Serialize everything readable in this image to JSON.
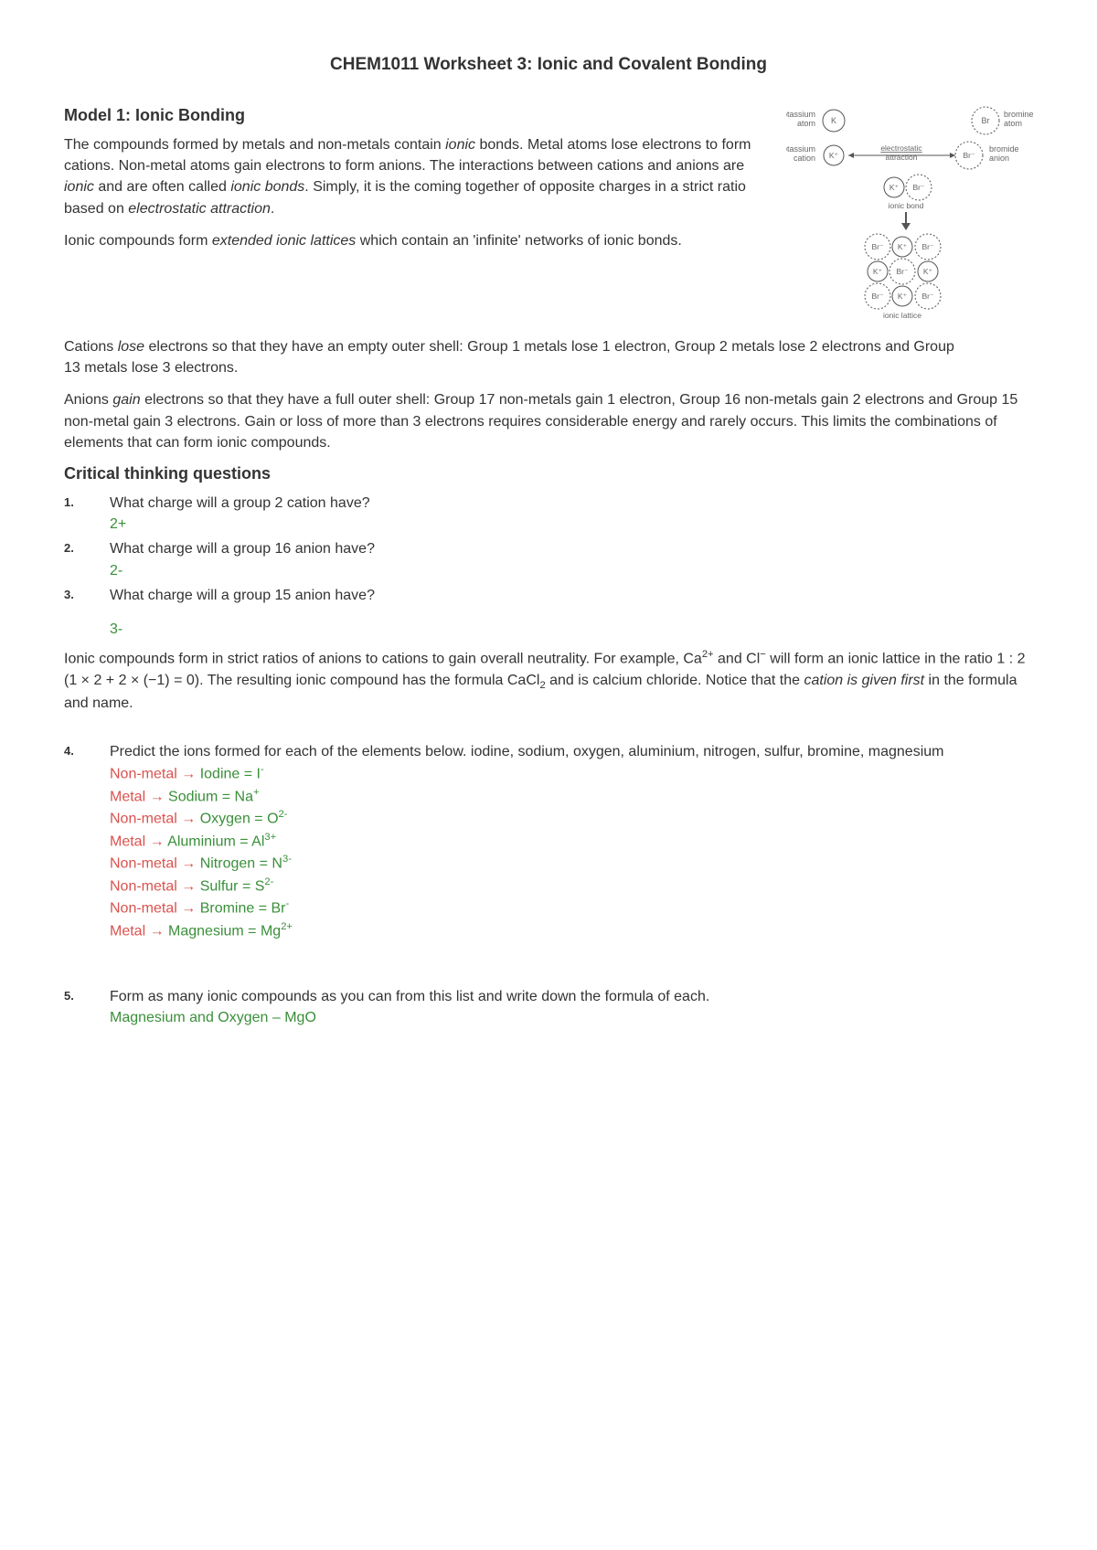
{
  "colors": {
    "text": "#333333",
    "green": "#3a8f3a",
    "red": "#d9534f",
    "diagram_stroke": "#555555",
    "diagram_text": "#666666",
    "background": "#ffffff"
  },
  "typography": {
    "body_fontsize": 16,
    "title_fontsize": 19,
    "heading_fontsize": 18,
    "qnum_fontsize": 13,
    "font_family": "Verdana"
  },
  "title": "CHEM1011 Worksheet 3: Ionic and Covalent Bonding",
  "model1": {
    "heading": "Model 1: Ionic Bonding",
    "p1_segments": [
      {
        "t": "The compounds formed by metals and non-metals contain "
      },
      {
        "t": "ionic",
        "i": true
      },
      {
        "t": " bonds. Metal atoms lose electrons to form cations. Non-metal atoms gain electrons to form anions. The interactions between cations and anions are "
      },
      {
        "t": "ionic",
        "i": true
      },
      {
        "t": " and are often called "
      },
      {
        "t": "ionic bonds",
        "i": true
      },
      {
        "t": ". Simply, it is the coming together of opposite charges in a strict ratio based on "
      },
      {
        "t": "electrostatic attraction",
        "i": true
      },
      {
        "t": "."
      }
    ],
    "p2_segments": [
      {
        "t": "Ionic compounds form "
      },
      {
        "t": "extended ionic lattices",
        "i": true
      },
      {
        "t": " which contain an 'infinite' networks of ionic bonds."
      }
    ],
    "p3_segments": [
      {
        "t": "Cations "
      },
      {
        "t": "lose",
        "i": true
      },
      {
        "t": " electrons so that they have an empty outer shell: Group 1 metals lose 1 electron, Group 2 metals lose 2 electrons and Group"
      }
    ],
    "p3b": "13 metals lose 3 electrons.",
    "p4_segments": [
      {
        "t": "Anions "
      },
      {
        "t": "gain",
        "i": true
      },
      {
        "t": " electrons so that they have a full outer shell: Group 17 non-metals gain 1 electron, Group 16 non-metals gain 2 electrons and Group 15 non-metal gain 3 electrons. Gain or loss of more than 3 electrons requires considerable energy and rarely occurs. This limits the combinations of elements that can form ionic compounds."
      }
    ]
  },
  "ctq_heading": "Critical thinking questions",
  "questions": {
    "q1": {
      "num": "1.",
      "text": "What charge will a group 2 cation have?",
      "ans": "2+"
    },
    "q2": {
      "num": "2.",
      "text": "What charge will a group 16 anion have?",
      "ans": "2-"
    },
    "q3": {
      "num": "3.",
      "text": "What charge will a group 15 anion have?",
      "ans": "3-"
    },
    "pRatio_html": "Ionic compounds form in strict ratios of anions to cations to gain overall neutrality. For example, Ca<sup>2+</sup> and Cl<sup>−</sup> will form an ionic lattice in the ratio 1 : 2 (1 × 2 + 2 × (−1) = 0). The resulting ionic compound has the formula CaCl<sub>2</sub> and is calcium chloride. Notice that the <em>cation is given first</em> in the formula and name.",
    "q4": {
      "num": "4.",
      "text": "Predict the ions formed for each of the elements below. iodine, sodium, oxygen, aluminium, nitrogen, sulfur, bromine, magnesium",
      "answers": [
        {
          "prefix": "Non-metal",
          "prefix_color": "red",
          "rest": " Iodine = I",
          "sup": "-"
        },
        {
          "prefix": "Metal",
          "prefix_color": "red",
          "rest": " Sodium = Na",
          "sup": "+"
        },
        {
          "prefix": "Non-metal",
          "prefix_color": "red",
          "rest": " Oxygen = O",
          "sup": "2-"
        },
        {
          "prefix": "Metal",
          "prefix_color": "red",
          "rest": " Aluminium = Al",
          "sup": "3+"
        },
        {
          "prefix": "Non-metal",
          "prefix_color": "red",
          "rest": " Nitrogen = N",
          "sup": "3-"
        },
        {
          "prefix": "Non-metal",
          "prefix_color": "red",
          "rest": " Sulfur = S",
          "sup": "2-"
        },
        {
          "prefix": "Non-metal",
          "prefix_color": "red",
          "rest": " Bromine = Br",
          "sup": "-"
        },
        {
          "prefix": "Metal",
          "prefix_color": "red",
          "rest": " Magnesium = Mg",
          "sup": "2+"
        }
      ]
    },
    "q5": {
      "num": "5.",
      "text": "Form as many ionic compounds as you can from this list and write down the formula of each.",
      "ans": "Magnesium and Oxygen – MgO"
    }
  },
  "diagram": {
    "labels": {
      "potassium_atom_l1": "potassium",
      "potassium_atom_l2": "atom",
      "bromine_atom_l1": "bromine",
      "bromine_atom_l2": "atom",
      "potassium_cation_l1": "potassium",
      "potassium_cation_l2": "cation",
      "electrostatic_l1": "electrostatic",
      "electrostatic_l2": "attraction",
      "bromide_anion_l1": "bromide",
      "bromide_anion_l2": "anion",
      "ionic_bond": "ionic bond",
      "ionic_lattice": "ionic lattice"
    },
    "atoms": {
      "K": "K",
      "Br": "Br",
      "Kp": "K⁺",
      "Brm": "Br⁻"
    },
    "circle_r_small": 12,
    "circle_r_big": 15,
    "stroke": "#555555"
  }
}
